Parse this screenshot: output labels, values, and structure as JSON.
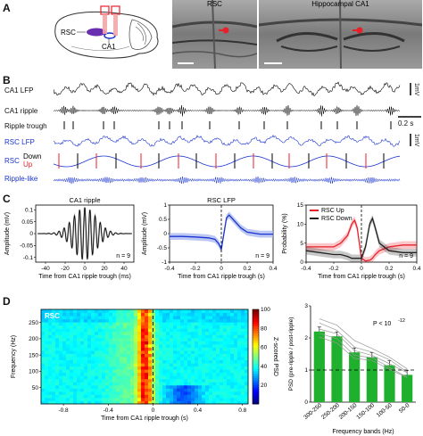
{
  "panels": {
    "A": "A",
    "B": "B",
    "C": "C",
    "D": "D"
  },
  "panelA": {
    "brain_labels": {
      "rsc": "RSC",
      "ca1": "CA1"
    },
    "image_titles": {
      "rsc": "RSC",
      "ca1": "Hippocampal CA1"
    }
  },
  "panelB": {
    "traces": {
      "ca1_lfp": "CA1 LFP",
      "ca1_ripple": "CA1 ripple",
      "ripple_trough": "Ripple trough",
      "rsc_lfp": "RSC LFP",
      "rsc": "RSC",
      "down": "Down",
      "up": "Up",
      "ripple_like": "Ripple-like"
    },
    "scalebars": {
      "voltage": "1mV",
      "voltage2": "1mV",
      "time": "0.2 s"
    },
    "colors": {
      "blue": "#1a34d1",
      "red": "#e8202a"
    }
  },
  "chart_data": [
    {
      "id": "C1",
      "type": "line",
      "title": "CA1 ripple",
      "xlabel": "Time from CA1 ripple trough (ms)",
      "ylabel": "Amplitude (mV)",
      "xlim": [
        -50,
        50
      ],
      "ylim": [
        -0.12,
        0.12
      ],
      "xticks": [
        "-40",
        "-20",
        "0",
        "20",
        "40"
      ],
      "yticks": [
        "0.1",
        "0.05",
        "0",
        "-0.05",
        "-0.1"
      ],
      "annotation": "n = 9",
      "series": [
        {
          "freq_hz": 190,
          "peak_mv": 0.11,
          "envelope_sd_ms": 12
        }
      ]
    },
    {
      "id": "C2",
      "type": "line",
      "title": "RSC LFP",
      "xlabel": "Time from CA1 ripple trough (s)",
      "ylabel": "Amplitude (mV)",
      "xlim": [
        -0.4,
        0.4
      ],
      "ylim": [
        -1,
        1
      ],
      "xticks": [
        "-0.4",
        "-0.2",
        "0",
        "0.2",
        "0.4"
      ],
      "yticks": [
        "1",
        "0.5",
        "0",
        "-0.5",
        "-1"
      ],
      "annotation": "n = 9",
      "x": [
        -0.4,
        -0.3,
        -0.2,
        -0.1,
        -0.05,
        -0.02,
        0,
        0.02,
        0.04,
        0.06,
        0.1,
        0.15,
        0.2,
        0.3,
        0.4
      ],
      "y": [
        -0.1,
        -0.1,
        -0.12,
        -0.15,
        -0.2,
        -0.35,
        -0.55,
        0.0,
        0.55,
        0.65,
        0.45,
        0.2,
        0.05,
        -0.02,
        -0.02
      ]
    },
    {
      "id": "C3",
      "type": "line",
      "xlabel": "Time from CA1 ripple trough (s)",
      "ylabel": "Probability (%)",
      "xlim": [
        -0.4,
        0.4
      ],
      "ylim": [
        0,
        15
      ],
      "xticks": [
        "-0.4",
        "-0.2",
        "0",
        "0.2",
        "0.4"
      ],
      "yticks": [
        "15",
        "10",
        "5",
        "0"
      ],
      "annotation": "n = 9",
      "legend": [
        "RSC Up",
        "RSC Down"
      ],
      "x": [
        -0.4,
        -0.3,
        -0.2,
        -0.15,
        -0.1,
        -0.07,
        -0.05,
        -0.03,
        0,
        0.03,
        0.06,
        0.08,
        0.1,
        0.13,
        0.2,
        0.3,
        0.4
      ],
      "series": [
        {
          "name": "RSC Up",
          "color": "#e8202a",
          "values": [
            4,
            4,
            4,
            5,
            7,
            10,
            11,
            9,
            1,
            0.3,
            0.5,
            1,
            2,
            3,
            4,
            4.5,
            4.5
          ]
        },
        {
          "name": "RSC Down",
          "color": "#222222",
          "values": [
            3,
            2.5,
            2,
            2,
            1.5,
            1,
            1,
            1,
            1,
            4,
            10,
            11.5,
            9,
            5,
            3,
            2.5,
            2.5
          ]
        }
      ]
    },
    {
      "id": "D1",
      "type": "heatmap",
      "title": "RSC",
      "xlabel": "Time from CA1 ripple trough (s)",
      "ylabel": "Frequency (Hz)",
      "xlim": [
        -1,
        0.85
      ],
      "ylim": [
        0,
        290
      ],
      "xticks": [
        "-0.8",
        "-0.4",
        "0",
        "0.4",
        "0.8"
      ],
      "yticks": [
        "250",
        "200",
        "150",
        "100",
        "50"
      ],
      "colorbar": {
        "label": "Z-scored PSD",
        "ticks": [
          "100",
          "80",
          "60",
          "40",
          "20"
        ],
        "range": [
          0,
          100
        ]
      }
    },
    {
      "id": "D2",
      "type": "bar",
      "xlabel": "Frequency bands (Hz)",
      "ylabel": "PSD (pre-ripple / post-ripple)",
      "ylim": [
        0,
        3
      ],
      "yticks": [
        "3",
        "2",
        "1",
        "0"
      ],
      "categories": [
        "300-250",
        "250-200",
        "200-150",
        "150-100",
        "100-50",
        "50-0"
      ],
      "values": [
        2.2,
        2.05,
        1.55,
        1.4,
        1.15,
        0.85
      ],
      "annotation": "P < 10",
      "annotation_exp": "-12",
      "color": "#1fb02e"
    }
  ]
}
